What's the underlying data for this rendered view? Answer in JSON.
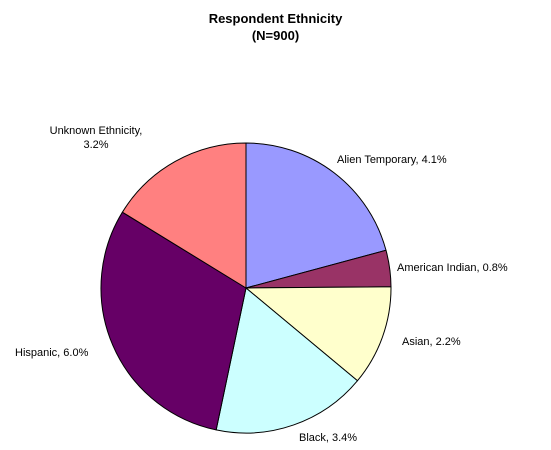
{
  "chart_data": {
    "type": "pie",
    "title": "Respondent Ethnicity",
    "subtitle": "(N=900)",
    "legend": "none",
    "slices": [
      {
        "label": "Alien Temporary",
        "value": 4.1,
        "value_label": "4.1%",
        "color": "#9999ff"
      },
      {
        "label": "American Indian",
        "value": 0.8,
        "value_label": "0.8%",
        "color": "#993366"
      },
      {
        "label": "Asian",
        "value": 2.2,
        "value_label": "2.2%",
        "color": "#ffffcc"
      },
      {
        "label": "Black",
        "value": 3.4,
        "value_label": "3.4%",
        "color": "#ccffff"
      },
      {
        "label": "Hispanic",
        "value": 6.0,
        "value_label": "6.0%",
        "color": "#660066"
      },
      {
        "label": "Unknown Ethnicity",
        "value": 3.2,
        "value_label": "3.2%",
        "color": "#ff8080"
      }
    ]
  }
}
